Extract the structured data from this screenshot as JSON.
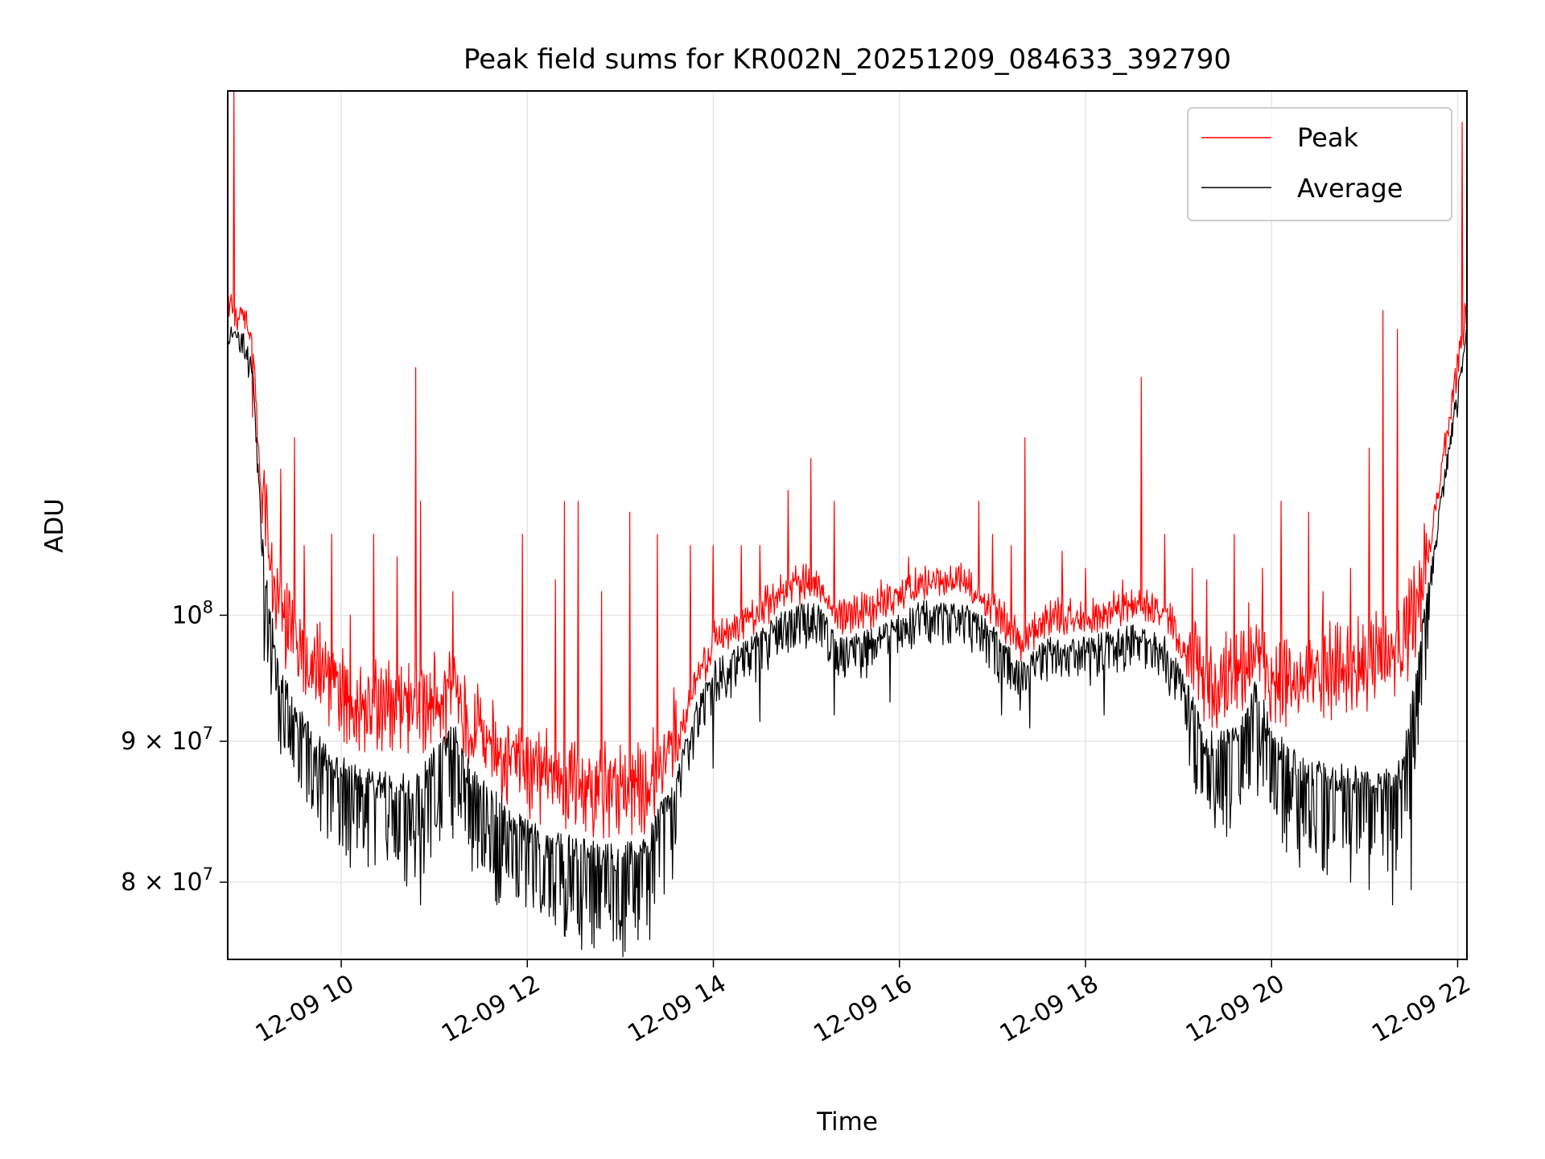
{
  "chart_data": {
    "type": "line",
    "title": "Peak field sums for KR002N_20251209_084633_392790",
    "xlabel": "Time",
    "ylabel": "ADU",
    "yscale": "log",
    "xlim_hours": [
      8.78,
      22.1
    ],
    "ylim": [
      75000000,
      155000000
    ],
    "grid": true,
    "legend_position": "upper right",
    "x_ticks": [
      {
        "value": 10,
        "label": "12-09 10"
      },
      {
        "value": 12,
        "label": "12-09 12"
      },
      {
        "value": 14,
        "label": "12-09 14"
      },
      {
        "value": 16,
        "label": "12-09 16"
      },
      {
        "value": 18,
        "label": "12-09 18"
      },
      {
        "value": 20,
        "label": "12-09 20"
      },
      {
        "value": 22,
        "label": "12-09 22"
      }
    ],
    "y_ticks": [
      {
        "value": 80000000,
        "mant": "8",
        "exp": "7"
      },
      {
        "value": 90000000,
        "mant": "9",
        "exp": "7"
      },
      {
        "value": 100000000,
        "mant": "10",
        "exp": "8"
      }
    ],
    "series": [
      {
        "name": "Peak",
        "color": "#ff0000",
        "baseline": [
          [
            8.78,
            128000000
          ],
          [
            8.95,
            127000000
          ],
          [
            9.05,
            124000000
          ],
          [
            9.15,
            108000000
          ],
          [
            9.3,
            98000000
          ],
          [
            9.5,
            95000000
          ],
          [
            9.8,
            92000000
          ],
          [
            10.2,
            90000000
          ],
          [
            10.8,
            89500000
          ],
          [
            11.2,
            91000000
          ],
          [
            11.4,
            88000000
          ],
          [
            11.8,
            86000000
          ],
          [
            12.2,
            84500000
          ],
          [
            12.6,
            83800000
          ],
          [
            13.0,
            83500000
          ],
          [
            13.3,
            84000000
          ],
          [
            13.6,
            88000000
          ],
          [
            13.8,
            93000000
          ],
          [
            14.0,
            96500000
          ],
          [
            14.4,
            98500000
          ],
          [
            14.8,
            101000000
          ],
          [
            15.1,
            101500000
          ],
          [
            15.4,
            98500000
          ],
          [
            15.8,
            99500000
          ],
          [
            16.2,
            101500000
          ],
          [
            16.7,
            101500000
          ],
          [
            17.0,
            99500000
          ],
          [
            17.3,
            96500000
          ],
          [
            17.6,
            98500000
          ],
          [
            18.0,
            98500000
          ],
          [
            18.5,
            99500000
          ],
          [
            18.9,
            98500000
          ],
          [
            19.1,
            95000000
          ],
          [
            19.3,
            91000000
          ],
          [
            19.6,
            92000000
          ],
          [
            19.85,
            95000000
          ],
          [
            20.0,
            91500000
          ],
          [
            20.3,
            92000000
          ],
          [
            20.6,
            92500000
          ],
          [
            21.0,
            93000000
          ],
          [
            21.4,
            94000000
          ],
          [
            21.6,
            99000000
          ],
          [
            21.8,
            110000000
          ],
          [
            22.0,
            122000000
          ],
          [
            22.1,
            128000000
          ]
        ],
        "spikes": [
          [
            8.85,
            155000000
          ],
          [
            8.9,
            128000000
          ],
          [
            9.05,
            118000000
          ],
          [
            9.15,
            108000000
          ],
          [
            9.35,
            113000000
          ],
          [
            9.5,
            116000000
          ],
          [
            9.6,
            106000000
          ],
          [
            9.9,
            107000000
          ],
          [
            10.1,
            100000000
          ],
          [
            10.35,
            107000000
          ],
          [
            10.6,
            105000000
          ],
          [
            10.8,
            123000000
          ],
          [
            10.85,
            110000000
          ],
          [
            11.2,
            102000000
          ],
          [
            11.95,
            107000000
          ],
          [
            12.3,
            103000000
          ],
          [
            12.4,
            110000000
          ],
          [
            12.55,
            110000000
          ],
          [
            12.8,
            102000000
          ],
          [
            13.1,
            109000000
          ],
          [
            13.4,
            107000000
          ],
          [
            13.75,
            106000000
          ],
          [
            14.0,
            106000000
          ],
          [
            14.3,
            106000000
          ],
          [
            14.5,
            106000000
          ],
          [
            14.8,
            111000000
          ],
          [
            15.05,
            114000000
          ],
          [
            15.3,
            110000000
          ],
          [
            15.8,
            103000000
          ],
          [
            16.1,
            105000000
          ],
          [
            16.4,
            104000000
          ],
          [
            16.6,
            103000000
          ],
          [
            16.85,
            110000000
          ],
          [
            17.0,
            107000000
          ],
          [
            17.2,
            106000000
          ],
          [
            17.35,
            116000000
          ],
          [
            17.75,
            105500000
          ],
          [
            18.0,
            104000000
          ],
          [
            18.4,
            103000000
          ],
          [
            18.6,
            122000000
          ],
          [
            18.85,
            107000000
          ],
          [
            19.15,
            104000000
          ],
          [
            19.3,
            103000000
          ],
          [
            19.6,
            107000000
          ],
          [
            19.9,
            104000000
          ],
          [
            20.1,
            110000000
          ],
          [
            20.4,
            109000000
          ],
          [
            20.55,
            102000000
          ],
          [
            20.85,
            104000000
          ],
          [
            21.05,
            115000000
          ],
          [
            21.2,
            129000000
          ],
          [
            21.35,
            127000000
          ],
          [
            21.5,
            103000000
          ],
          [
            21.7,
            106000000
          ],
          [
            22.05,
            151000000
          ]
        ]
      },
      {
        "name": "Average",
        "color": "#000000",
        "baseline": [
          [
            8.78,
            127000000
          ],
          [
            8.95,
            126000000
          ],
          [
            9.05,
            123000000
          ],
          [
            9.15,
            106000000
          ],
          [
            9.3,
            96000000
          ],
          [
            9.5,
            92500000
          ],
          [
            9.8,
            89000000
          ],
          [
            10.2,
            87000000
          ],
          [
            10.8,
            86500000
          ],
          [
            11.2,
            90500000
          ],
          [
            11.4,
            87000000
          ],
          [
            11.8,
            84500000
          ],
          [
            12.2,
            82500000
          ],
          [
            12.6,
            82000000
          ],
          [
            13.0,
            81500000
          ],
          [
            13.3,
            82500000
          ],
          [
            13.6,
            87000000
          ],
          [
            13.8,
            92000000
          ],
          [
            14.0,
            95500000
          ],
          [
            14.4,
            97500000
          ],
          [
            14.8,
            100000000
          ],
          [
            15.1,
            100500000
          ],
          [
            15.4,
            97500000
          ],
          [
            15.8,
            98500000
          ],
          [
            16.2,
            100500000
          ],
          [
            16.7,
            100500000
          ],
          [
            17.0,
            98500000
          ],
          [
            17.3,
            95500000
          ],
          [
            17.6,
            97500000
          ],
          [
            18.0,
            97500000
          ],
          [
            18.5,
            98500000
          ],
          [
            18.9,
            97500000
          ],
          [
            19.1,
            93500000
          ],
          [
            19.3,
            89500000
          ],
          [
            19.6,
            90500000
          ],
          [
            19.85,
            94000000
          ],
          [
            20.0,
            90000000
          ],
          [
            20.3,
            88000000
          ],
          [
            20.6,
            87500000
          ],
          [
            21.0,
            87000000
          ],
          [
            21.4,
            87500000
          ],
          [
            21.6,
            97000000
          ],
          [
            21.8,
            109000000
          ],
          [
            22.0,
            121000000
          ],
          [
            22.1,
            127000000
          ]
        ],
        "dips": [
          [
            9.0,
            122000000
          ],
          [
            9.45,
            89000000
          ],
          [
            9.85,
            83000000
          ],
          [
            10.1,
            81000000
          ],
          [
            10.5,
            81500000
          ],
          [
            10.85,
            78500000
          ],
          [
            11.2,
            83000000
          ],
          [
            11.9,
            79000000
          ],
          [
            12.15,
            78000000
          ],
          [
            12.4,
            76500000
          ],
          [
            12.75,
            77000000
          ],
          [
            13.05,
            75500000
          ],
          [
            13.3,
            79500000
          ],
          [
            14.0,
            88000000
          ],
          [
            14.5,
            91500000
          ],
          [
            15.3,
            92000000
          ],
          [
            15.9,
            93000000
          ],
          [
            17.1,
            92000000
          ],
          [
            17.4,
            91000000
          ],
          [
            18.2,
            92000000
          ],
          [
            18.9,
            93500000
          ],
          [
            19.2,
            86500000
          ],
          [
            19.5,
            86000000
          ],
          [
            19.85,
            86000000
          ],
          [
            20.3,
            81000000
          ],
          [
            20.6,
            80500000
          ],
          [
            20.85,
            80000000
          ],
          [
            21.05,
            79500000
          ],
          [
            21.3,
            78500000
          ],
          [
            21.5,
            79500000
          ],
          [
            22.0,
            118000000
          ]
        ]
      }
    ]
  }
}
